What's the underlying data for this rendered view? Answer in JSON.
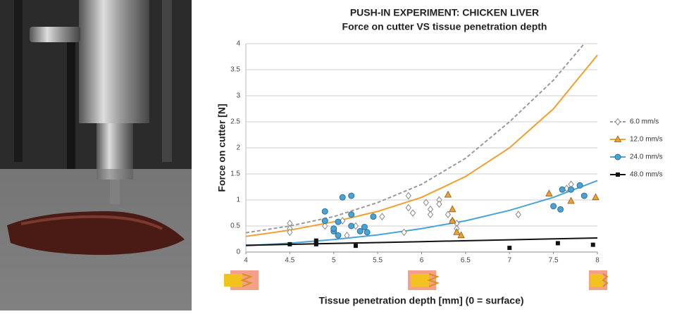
{
  "chart_data": {
    "type": "scatter",
    "title": "PUSH-IN EXPERIMENT: CHICKEN LIVER",
    "subtitle": "Force on cutter VS tissue penetration depth",
    "x_label": "Tissue penetration depth [mm] (0 = surface)",
    "y_label": "Force on cutter [N]",
    "xlim": [
      4,
      8
    ],
    "ylim": [
      0,
      4
    ],
    "xticks": [
      4,
      4.5,
      5,
      5.5,
      6,
      6.5,
      7,
      7.5,
      8
    ],
    "yticks": [
      0,
      0.5,
      1,
      1.5,
      2,
      2.5,
      3,
      3.5,
      4
    ],
    "grid": true,
    "legend": "right",
    "series": [
      {
        "name": "6.0 mm/s",
        "color": "#9a9a9a",
        "marker": "diamond",
        "x": [
          4.5,
          4.5,
          4.5,
          4.9,
          5.0,
          5.1,
          5.15,
          5.25,
          5.55,
          5.8,
          5.85,
          5.85,
          5.9,
          6.05,
          6.1,
          6.1,
          6.2,
          6.2,
          6.3,
          6.35,
          6.4,
          6.4,
          7.1,
          7.65,
          7.7
        ],
        "values": [
          0.55,
          0.45,
          0.38,
          0.5,
          0.45,
          0.6,
          0.32,
          0.5,
          0.68,
          0.38,
          0.85,
          1.08,
          0.75,
          0.95,
          0.82,
          0.72,
          1.0,
          0.92,
          0.72,
          0.6,
          0.55,
          0.45,
          0.72,
          1.22,
          1.3
        ],
        "fit": {
          "dash": true,
          "x": [
            4,
            4.5,
            5,
            5.5,
            6,
            6.5,
            7,
            7.5,
            7.85
          ],
          "values": [
            0.37,
            0.5,
            0.68,
            0.95,
            1.3,
            1.8,
            2.5,
            3.3,
            4
          ]
        }
      },
      {
        "name": "12.0 mm/s",
        "color": "#f0a030",
        "marker": "triangle",
        "x": [
          6.3,
          6.35,
          6.35,
          6.4,
          6.45,
          7.45,
          7.7,
          7.98
        ],
        "values": [
          1.1,
          0.82,
          0.6,
          0.38,
          0.32,
          1.12,
          0.98,
          1.05
        ],
        "fit": {
          "dash": false,
          "x": [
            4,
            4.5,
            5,
            5.5,
            6,
            6.5,
            7,
            7.5,
            8
          ],
          "values": [
            0.3,
            0.42,
            0.58,
            0.78,
            1.05,
            1.45,
            2.0,
            2.75,
            3.78
          ]
        }
      },
      {
        "name": "24.0 mm/s",
        "color": "#4aa3d8",
        "marker": "circle",
        "x": [
          4.9,
          4.9,
          5.0,
          5.0,
          5.05,
          5.1,
          5.2,
          5.2,
          5.2,
          5.3,
          5.35,
          5.38,
          5.45,
          5.05,
          7.5,
          7.58,
          7.6,
          7.7,
          7.8,
          7.85
        ],
        "values": [
          0.78,
          0.6,
          0.4,
          0.45,
          0.58,
          1.05,
          1.08,
          0.72,
          0.5,
          0.4,
          0.48,
          0.38,
          0.68,
          0.32,
          0.88,
          0.82,
          1.2,
          1.2,
          1.28,
          1.08
        ],
        "fit": {
          "dash": false,
          "x": [
            4,
            4.5,
            5,
            5.5,
            6,
            6.5,
            7,
            7.5,
            8
          ],
          "values": [
            0.12,
            0.17,
            0.24,
            0.33,
            0.45,
            0.6,
            0.8,
            1.05,
            1.37
          ]
        }
      },
      {
        "name": "48.0 mm/s",
        "color": "#111111",
        "marker": "square",
        "x": [
          4.5,
          4.8,
          4.8,
          5.25,
          7.0,
          7.55,
          7.95
        ],
        "values": [
          0.15,
          0.22,
          0.15,
          0.12,
          0.08,
          0.17,
          0.14
        ],
        "fit": {
          "dash": false,
          "x": [
            4,
            5,
            6,
            7,
            8
          ],
          "values": [
            0.13,
            0.165,
            0.2,
            0.235,
            0.27
          ]
        }
      }
    ]
  }
}
